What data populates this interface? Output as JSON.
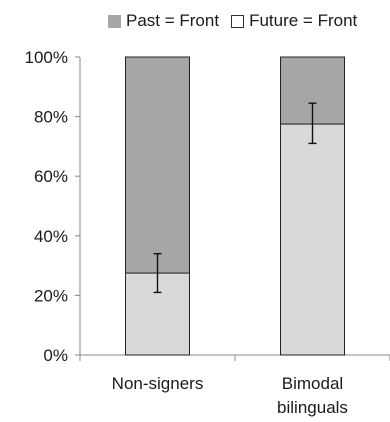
{
  "legend": {
    "past_label": "Past = Front",
    "future_label": "Future = Front"
  },
  "chart_data": {
    "type": "bar",
    "stacked": true,
    "categories": [
      "Non-signers",
      "Bimodal bilinguals"
    ],
    "category_lines": [
      [
        "Non-signers"
      ],
      [
        "Bimodal",
        "bilinguals"
      ]
    ],
    "series": [
      {
        "name": "Future = Front",
        "values": [
          27.5,
          77.5
        ],
        "color": "#d9d9d9",
        "error": [
          [
            21,
            34
          ],
          [
            71,
            84.5
          ]
        ]
      },
      {
        "name": "Past = Front",
        "values": [
          72.5,
          22.5
        ],
        "color": "#a6a6a6"
      }
    ],
    "yticks": [
      "0%",
      "20%",
      "40%",
      "60%",
      "80%",
      "100%"
    ],
    "ylim": [
      0,
      100
    ],
    "legend_position": "top"
  }
}
